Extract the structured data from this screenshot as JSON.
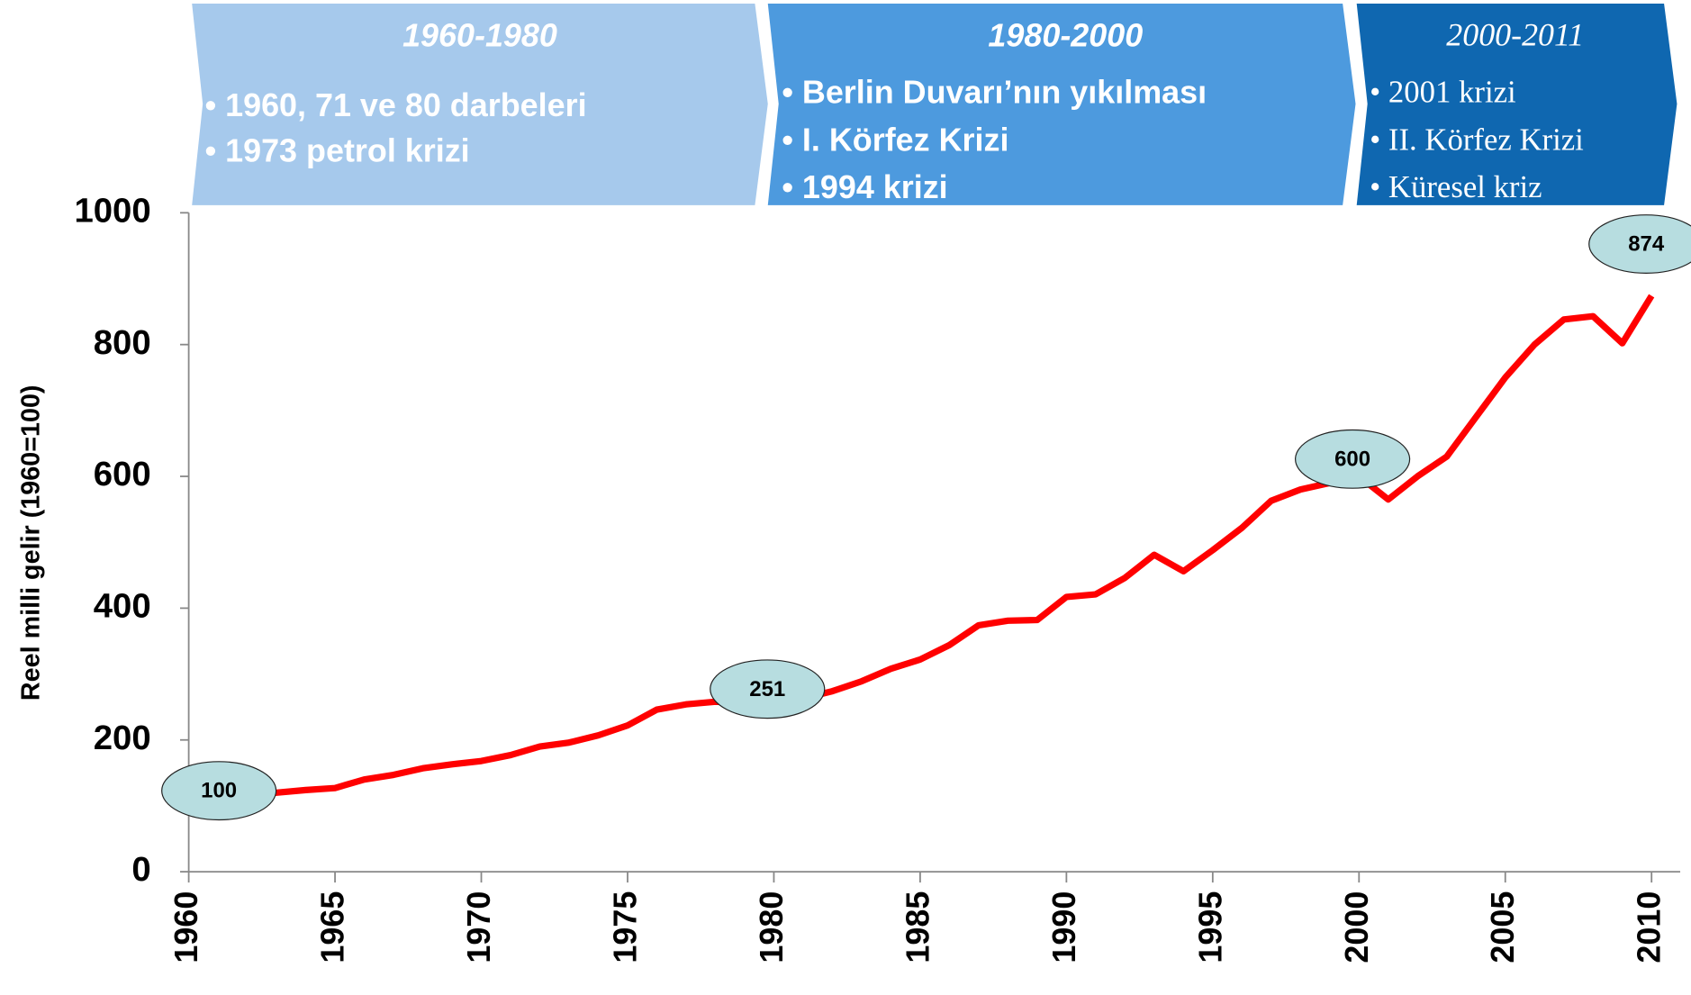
{
  "chart_data": {
    "type": "line",
    "y_label": "Reel milli gelir (1960=100)",
    "periods": [
      {
        "title": "1960-1980",
        "items": [
          "1960, 71 ve 80 darbeleri",
          "1973 petrol krizi"
        ]
      },
      {
        "title": "1980-2000",
        "items": [
          "Berlin Duvarı’nın yıkılması",
          "I. Körfez Krizi",
          "1994 krizi"
        ]
      },
      {
        "title": "2000-2011",
        "items": [
          "2001 krizi",
          "II. Körfez Krizi",
          "Küresel kriz"
        ]
      }
    ],
    "x": [
      1960,
      1961,
      1962,
      1963,
      1964,
      1965,
      1966,
      1967,
      1968,
      1969,
      1970,
      1971,
      1972,
      1973,
      1974,
      1975,
      1976,
      1977,
      1978,
      1979,
      1980,
      1981,
      1982,
      1983,
      1984,
      1985,
      1986,
      1987,
      1988,
      1989,
      1990,
      1991,
      1992,
      1993,
      1994,
      1995,
      1996,
      1997,
      1998,
      1999,
      2000,
      2001,
      2002,
      2003,
      2004,
      2005,
      2006,
      2007,
      2008,
      2009,
      2010
    ],
    "series": [
      {
        "name": "Reel milli gelir",
        "color": "#ff0000",
        "values": [
          100,
          108,
          115,
          120,
          124,
          127,
          140,
          147,
          157,
          163,
          168,
          177,
          190,
          196,
          207,
          222,
          246,
          254,
          258,
          256,
          251,
          263,
          274,
          289,
          308,
          322,
          344,
          374,
          381,
          382,
          417,
          421,
          446,
          481,
          456,
          488,
          522,
          563,
          580,
          590,
          600,
          565,
          600,
          630,
          690,
          750,
          800,
          838,
          843,
          802,
          874
        ]
      }
    ],
    "labeled_points": [
      0,
      20,
      40,
      50
    ],
    "xlim": [
      1960,
      2010.5
    ],
    "xticks": [
      1960,
      1965,
      1970,
      1975,
      1980,
      1985,
      1990,
      1995,
      2000,
      2005,
      2010
    ],
    "ylim": [
      0,
      1000
    ],
    "yticks": [
      0,
      200,
      400,
      600,
      800,
      1000
    ]
  }
}
